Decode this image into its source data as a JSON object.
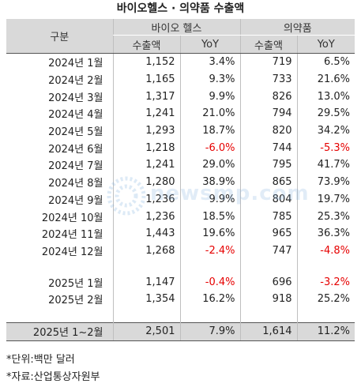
{
  "title": "바이오헬스 · 의약품 수출액",
  "header": {
    "gubun": "구분",
    "bio": "바이오 헬스",
    "pharm": "의약품",
    "export": "수출액",
    "yoy": "YoY"
  },
  "rows": [
    {
      "label": "2024년  1월",
      "bio_export": "1,152",
      "bio_yoy": "3.4%",
      "ph_export": "719",
      "ph_yoy": "6.5%"
    },
    {
      "label": "2024년  2월",
      "bio_export": "1,165",
      "bio_yoy": "9.3%",
      "ph_export": "733",
      "ph_yoy": "21.6%"
    },
    {
      "label": "2024년  3월",
      "bio_export": "1,317",
      "bio_yoy": "9.9%",
      "ph_export": "826",
      "ph_yoy": "13.0%"
    },
    {
      "label": "2024년  4월",
      "bio_export": "1,241",
      "bio_yoy": "21.0%",
      "ph_export": "794",
      "ph_yoy": "29.5%"
    },
    {
      "label": "2024년  5월",
      "bio_export": "1,293",
      "bio_yoy": "18.7%",
      "ph_export": "820",
      "ph_yoy": "34.2%"
    },
    {
      "label": "2024년  6월",
      "bio_export": "1,218",
      "bio_yoy": "-6.0%",
      "ph_export": "744",
      "ph_yoy": "-5.3%"
    },
    {
      "label": "2024년  7월",
      "bio_export": "1,241",
      "bio_yoy": "29.0%",
      "ph_export": "795",
      "ph_yoy": "41.7%"
    },
    {
      "label": "2024년  8월",
      "bio_export": "1,280",
      "bio_yoy": "38.9%",
      "ph_export": "865",
      "ph_yoy": "73.9%"
    },
    {
      "label": "2024년  9월",
      "bio_export": "1,236",
      "bio_yoy": "9.9%",
      "ph_export": "804",
      "ph_yoy": "19.7%"
    },
    {
      "label": "2024년  10월",
      "bio_export": "1,236",
      "bio_yoy": "18.5%",
      "ph_export": "785",
      "ph_yoy": "25.3%"
    },
    {
      "label": "2024년  11월",
      "bio_export": "1,443",
      "bio_yoy": "19.6%",
      "ph_export": "965",
      "ph_yoy": "36.3%"
    },
    {
      "label": "2024년  12월",
      "bio_export": "1,268",
      "bio_yoy": "-2.4%",
      "ph_export": "747",
      "ph_yoy": "-4.8%"
    }
  ],
  "rows2025": [
    {
      "label": "2025년  1월",
      "bio_export": "1,147",
      "bio_yoy": "-0.4%",
      "ph_export": "696",
      "ph_yoy": "-3.2%"
    },
    {
      "label": "2025년  2월",
      "bio_export": "1,354",
      "bio_yoy": "16.2%",
      "ph_export": "918",
      "ph_yoy": "25.2%"
    }
  ],
  "total": {
    "label": "2025년  1~2월",
    "bio_export": "2,501",
    "bio_yoy": "7.9%",
    "ph_export": "1,614",
    "ph_yoy": "11.2%"
  },
  "notes": {
    "unit": "*단위:백만 달러",
    "source": "*자료:산업통상자원부"
  },
  "watermark": "newsmp.com",
  "colors": {
    "header_bg": "#d9d9d9",
    "negative": "#e60000"
  }
}
